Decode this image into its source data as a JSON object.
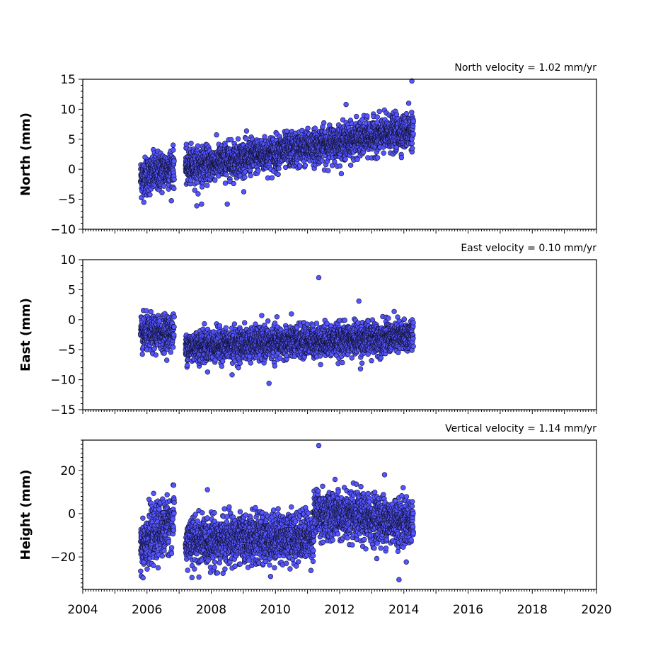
{
  "chart_data": [
    {
      "type": "scatter",
      "panel": "north",
      "ylabel": "North (mm)",
      "annotation": "North velocity = 1.02 mm/yr",
      "xlim": [
        2004,
        2020
      ],
      "ylim": [
        -10,
        15
      ],
      "yticks": [
        -10,
        -5,
        0,
        5,
        10,
        15
      ],
      "ytick_labels": [
        "−10",
        "−5",
        "0",
        "5",
        "10",
        "15"
      ],
      "x_tick_labels_shown": false,
      "marker_color": "#5555ff",
      "segments": [
        {
          "start": 2005.8,
          "end": 2006.85,
          "mean_start": -1.5,
          "mean_end": 0.5,
          "spread": 1.6
        },
        {
          "start": 2007.2,
          "end": 2014.3,
          "mean_start": 0.3,
          "mean_end": 6.5,
          "spread": 1.4
        }
      ],
      "outliers": [
        {
          "x": 2014.25,
          "y": 14.7
        },
        {
          "x": 2014.15,
          "y": 11.0
        },
        {
          "x": 2012.2,
          "y": 10.8
        },
        {
          "x": 2007.55,
          "y": -6.1
        },
        {
          "x": 2007.7,
          "y": -5.8
        },
        {
          "x": 2008.5,
          "y": -5.8
        }
      ]
    },
    {
      "type": "scatter",
      "panel": "east",
      "ylabel": "East (mm)",
      "annotation": "East velocity = 0.10 mm/yr",
      "xlim": [
        2004,
        2020
      ],
      "ylim": [
        -15,
        10
      ],
      "yticks": [
        -15,
        -10,
        -5,
        0,
        5,
        10
      ],
      "ytick_labels": [
        "−15",
        "−10",
        "−5",
        "0",
        "5",
        "10"
      ],
      "x_tick_labels_shown": false,
      "marker_color": "#5555ff",
      "segments": [
        {
          "start": 2005.8,
          "end": 2006.85,
          "mean_start": -2.5,
          "mean_end": -2.0,
          "spread": 1.4
        },
        {
          "start": 2007.2,
          "end": 2014.3,
          "mean_start": -4.5,
          "mean_end": -2.8,
          "spread": 1.3
        }
      ],
      "outliers": [
        {
          "x": 2011.35,
          "y": 7.0
        },
        {
          "x": 2012.6,
          "y": 3.1
        },
        {
          "x": 2009.8,
          "y": -10.6
        },
        {
          "x": 2008.65,
          "y": -9.2
        },
        {
          "x": 2012.65,
          "y": -8.2
        }
      ]
    },
    {
      "type": "scatter",
      "panel": "height",
      "ylabel": "Height (mm)",
      "annotation": "Vertical velocity = 1.14 mm/yr",
      "xlim": [
        2004,
        2020
      ],
      "ylim": [
        -35,
        34
      ],
      "yticks": [
        -20,
        0,
        20
      ],
      "ytick_labels": [
        "−20",
        "0",
        "20"
      ],
      "x_tick_labels_shown": true,
      "xticks": [
        2004,
        2006,
        2008,
        2010,
        2012,
        2014,
        2016,
        2018,
        2020
      ],
      "xtick_labels": [
        "2004",
        "2006",
        "2008",
        "2010",
        "2012",
        "2014",
        "2016",
        "2018",
        "2020"
      ],
      "marker_color": "#5555ff",
      "segments": [
        {
          "start": 2005.8,
          "end": 2006.85,
          "mean_start": -14.0,
          "mean_end": -3.0,
          "spread": 6.0
        },
        {
          "start": 2007.2,
          "end": 2011.2,
          "mean_start": -13.0,
          "mean_end": -10.0,
          "spread": 5.5
        },
        {
          "start": 2011.2,
          "end": 2014.3,
          "mean_start": 0.0,
          "mean_end": -4.0,
          "spread": 5.5
        }
      ],
      "outliers": [
        {
          "x": 2011.35,
          "y": 31.5
        },
        {
          "x": 2013.85,
          "y": -30.5
        },
        {
          "x": 2007.4,
          "y": -29.5
        },
        {
          "x": 2009.85,
          "y": -29.0
        },
        {
          "x": 2013.4,
          "y": 18.0
        }
      ]
    }
  ]
}
